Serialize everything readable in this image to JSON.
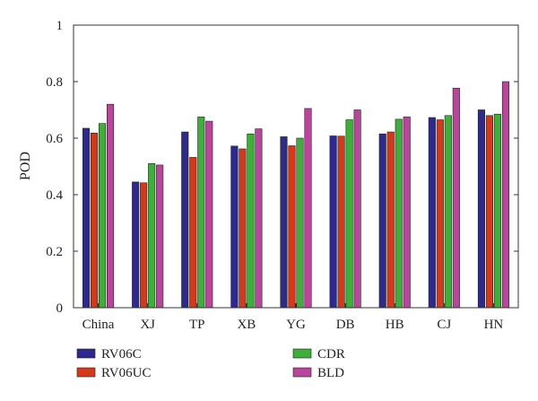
{
  "chart_data": {
    "type": "bar",
    "ylabel": "POD",
    "xlabel": "",
    "title": "",
    "ylim": [
      0,
      1
    ],
    "yticks": [
      0,
      0.2,
      0.4,
      0.6,
      0.8,
      1
    ],
    "ytick_labels": [
      "0",
      "0.2",
      "0.4",
      "0.6",
      "0.8",
      "1"
    ],
    "grid": false,
    "legend_position": "bottom",
    "categories": [
      "China",
      "XJ",
      "TP",
      "XB",
      "YG",
      "DB",
      "HB",
      "CJ",
      "HN"
    ],
    "series": [
      {
        "name": "RV06C",
        "color": "#2e2a8c",
        "values": [
          0.635,
          0.445,
          0.622,
          0.572,
          0.605,
          0.608,
          0.615,
          0.673,
          0.7
        ]
      },
      {
        "name": "RV06UC",
        "color": "#d23a1c",
        "values": [
          0.618,
          0.442,
          0.532,
          0.562,
          0.573,
          0.607,
          0.622,
          0.665,
          0.68
        ]
      },
      {
        "name": "CDR",
        "color": "#3fae3a",
        "values": [
          0.652,
          0.51,
          0.675,
          0.615,
          0.6,
          0.665,
          0.667,
          0.68,
          0.685
        ]
      },
      {
        "name": "BLD",
        "color": "#b8479c",
        "values": [
          0.72,
          0.505,
          0.66,
          0.633,
          0.705,
          0.7,
          0.675,
          0.777,
          0.8
        ]
      }
    ]
  }
}
